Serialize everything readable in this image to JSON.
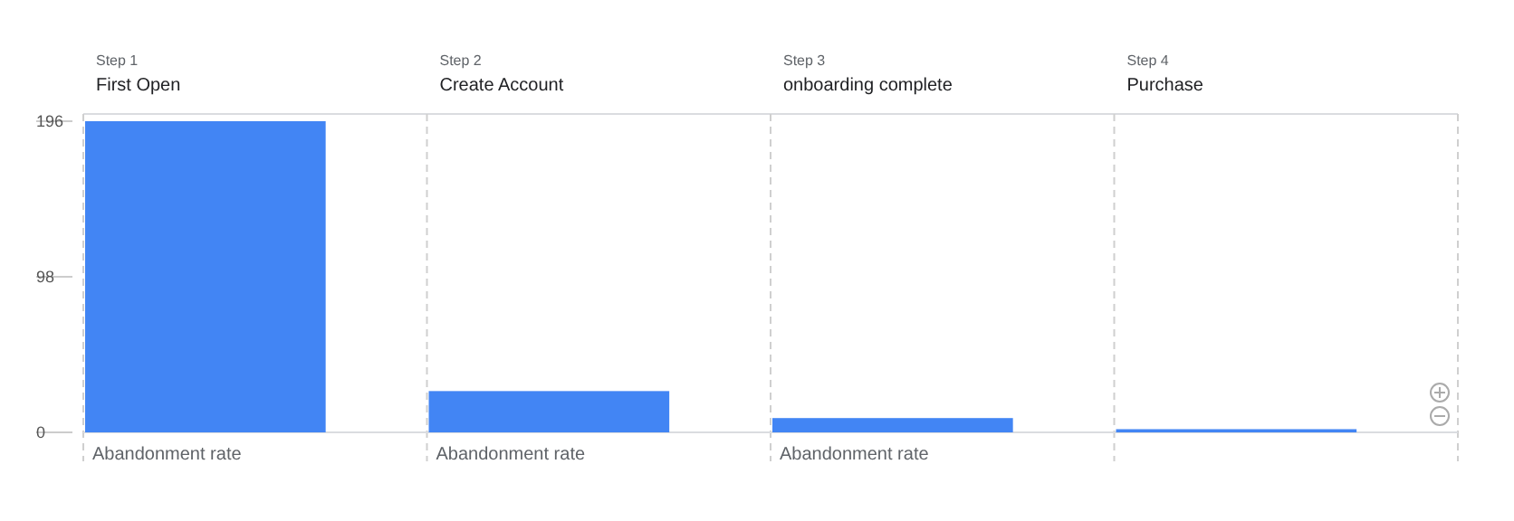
{
  "chart_data": {
    "type": "bar",
    "categories": [
      "First Open",
      "Create Account",
      "onboarding complete",
      "Purchase"
    ],
    "values": [
      196,
      26,
      9,
      2
    ],
    "color": "#4285f4",
    "ylim": [
      0,
      196
    ],
    "yticks": [
      0,
      98,
      196
    ],
    "annotations": [
      "Step 1",
      "Step 2",
      "Step 3",
      "Step 4",
      "Abandonment rate",
      "Abandonment rate",
      "Abandonment rate"
    ]
  }
}
